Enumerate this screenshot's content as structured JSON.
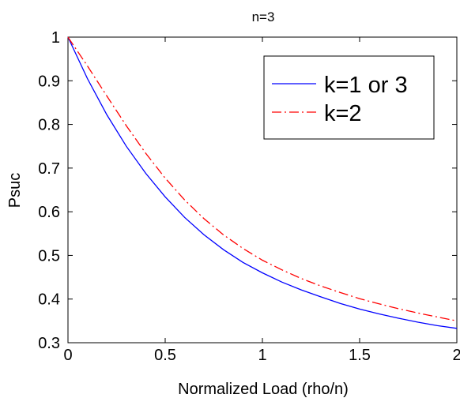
{
  "chart_data": {
    "type": "line",
    "title": "n=3",
    "xlabel": "Normalized Load (rho/n)",
    "ylabel": "Psuc",
    "xlim": [
      0,
      2
    ],
    "ylim": [
      0.3,
      1
    ],
    "xticks": [
      0,
      0.5,
      1,
      1.5,
      2
    ],
    "xtick_labels": [
      "0",
      "0.5",
      "1",
      "1.5",
      "2"
    ],
    "yticks": [
      0.3,
      0.4,
      0.5,
      0.6,
      0.7,
      0.8,
      0.9,
      1
    ],
    "ytick_labels": [
      "0.3",
      "0.4",
      "0.5",
      "0.6",
      "0.7",
      "0.8",
      "0.9",
      "1"
    ],
    "grid": false,
    "legend_position": "top-right",
    "x": [
      0,
      0.1,
      0.2,
      0.3,
      0.4,
      0.5,
      0.6,
      0.7,
      0.8,
      0.9,
      1.0,
      1.1,
      1.2,
      1.3,
      1.4,
      1.5,
      1.6,
      1.7,
      1.8,
      1.9,
      2.0
    ],
    "series": [
      {
        "name": "k=1 or 3",
        "color": "#0000ff",
        "style": "solid",
        "values": [
          1.0,
          0.905,
          0.822,
          0.75,
          0.688,
          0.634,
          0.587,
          0.547,
          0.513,
          0.484,
          0.46,
          0.439,
          0.421,
          0.405,
          0.39,
          0.377,
          0.366,
          0.356,
          0.347,
          0.339,
          0.333
        ]
      },
      {
        "name": "k=2",
        "color": "#ff0000",
        "style": "dashdot",
        "values": [
          1.0,
          0.934,
          0.865,
          0.797,
          0.734,
          0.677,
          0.627,
          0.584,
          0.547,
          0.516,
          0.489,
          0.467,
          0.447,
          0.43,
          0.415,
          0.401,
          0.389,
          0.378,
          0.368,
          0.359,
          0.35
        ]
      }
    ]
  }
}
